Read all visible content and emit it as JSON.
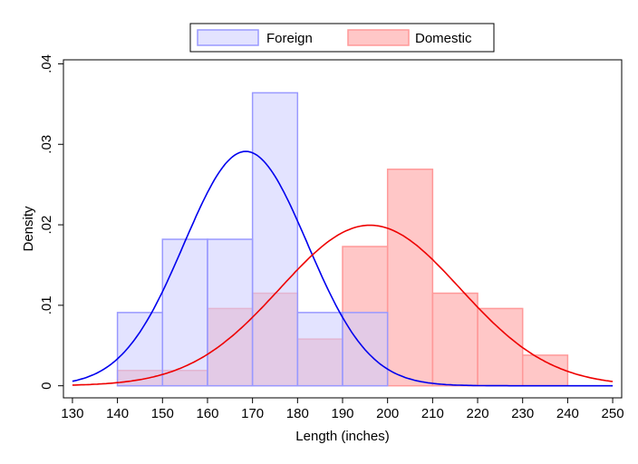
{
  "chart_data": {
    "type": "histogram",
    "xlabel": "Length (inches)",
    "ylabel": "Density",
    "xlim": [
      128,
      252
    ],
    "ylim": [
      -0.0015,
      0.0405
    ],
    "x_ticks": [
      130,
      140,
      150,
      160,
      170,
      180,
      190,
      200,
      210,
      220,
      230,
      240,
      250
    ],
    "y_ticks": [
      0,
      0.01,
      0.02,
      0.03,
      0.04
    ],
    "y_tick_labels": [
      "0",
      ".01",
      ".02",
      ".03",
      ".04"
    ],
    "grid": false,
    "legend_position": "top-center",
    "series": [
      {
        "name": "Foreign",
        "fill_color": "#ccccff",
        "edge_color": "#9999ff",
        "line_color": "#0000ee",
        "bins": [
          {
            "x0": 140,
            "x1": 150,
            "density": 0.0091
          },
          {
            "x0": 150,
            "x1": 160,
            "density": 0.0182
          },
          {
            "x0": 160,
            "x1": 170,
            "density": 0.0182
          },
          {
            "x0": 170,
            "x1": 180,
            "density": 0.0364
          },
          {
            "x0": 180,
            "x1": 190,
            "density": 0.0091
          },
          {
            "x0": 190,
            "x1": 200,
            "density": 0.0091
          }
        ],
        "normal": {
          "mean": 168.5,
          "sd": 13.7
        }
      },
      {
        "name": "Domestic",
        "fill_color": "#ff9999",
        "edge_color": "#ff9999",
        "line_color": "#ee0000",
        "bins": [
          {
            "x0": 140,
            "x1": 150,
            "density": 0.0019
          },
          {
            "x0": 150,
            "x1": 160,
            "density": 0.0019
          },
          {
            "x0": 160,
            "x1": 170,
            "density": 0.0096
          },
          {
            "x0": 170,
            "x1": 180,
            "density": 0.0115
          },
          {
            "x0": 180,
            "x1": 190,
            "density": 0.0058
          },
          {
            "x0": 190,
            "x1": 200,
            "density": 0.0173
          },
          {
            "x0": 200,
            "x1": 210,
            "density": 0.0269
          },
          {
            "x0": 210,
            "x1": 220,
            "density": 0.0115
          },
          {
            "x0": 220,
            "x1": 230,
            "density": 0.0096
          },
          {
            "x0": 230,
            "x1": 240,
            "density": 0.0038
          }
        ],
        "normal": {
          "mean": 196.1,
          "sd": 20.0
        }
      }
    ]
  }
}
